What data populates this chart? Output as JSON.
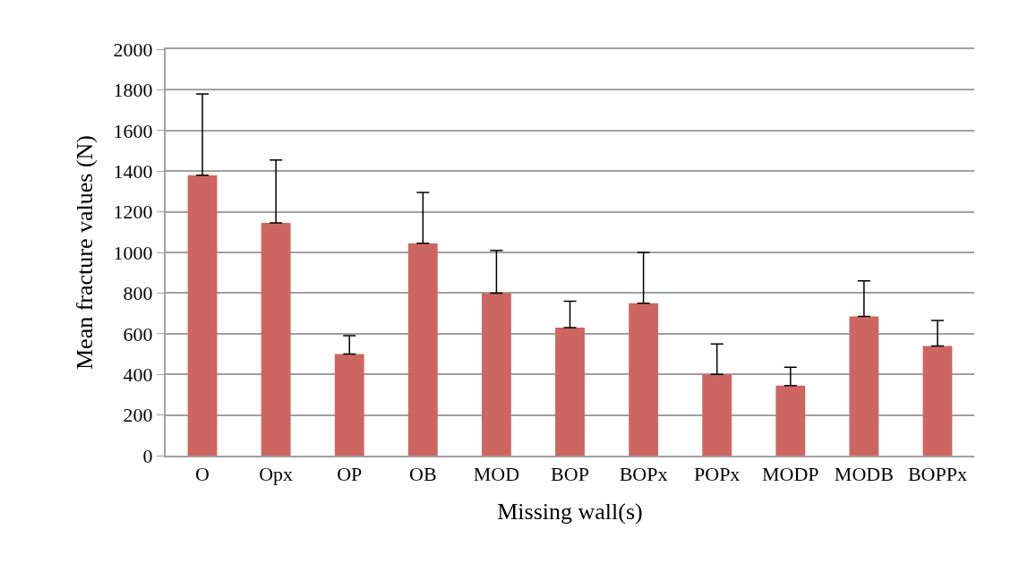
{
  "chart_data": {
    "type": "bar",
    "xlabel": "Missing wall(s)",
    "ylabel": "Mean fracture values (N)",
    "categories": [
      "O",
      "Opx",
      "OP",
      "OB",
      "MOD",
      "BOP",
      "BOPx",
      "POPx",
      "MODP",
      "MODB",
      "BOPPx"
    ],
    "series": [
      {
        "color": "#cd6660",
        "values": [
          1380,
          1145,
          500,
          1045,
          800,
          630,
          750,
          400,
          345,
          685,
          540
        ],
        "errors": [
          [
            1380,
            1780
          ],
          [
            1145,
            1455
          ],
          [
            500,
            590
          ],
          [
            1045,
            1295
          ],
          [
            800,
            1010
          ],
          [
            630,
            760
          ],
          [
            750,
            1000
          ],
          [
            400,
            550
          ],
          [
            345,
            435
          ],
          [
            685,
            860
          ],
          [
            540,
            665
          ]
        ]
      }
    ],
    "ylim": [
      0,
      2000
    ],
    "yticks": [
      0,
      200,
      400,
      600,
      800,
      1000,
      1200,
      1400,
      1600,
      1800,
      2000
    ],
    "grid": "y"
  }
}
